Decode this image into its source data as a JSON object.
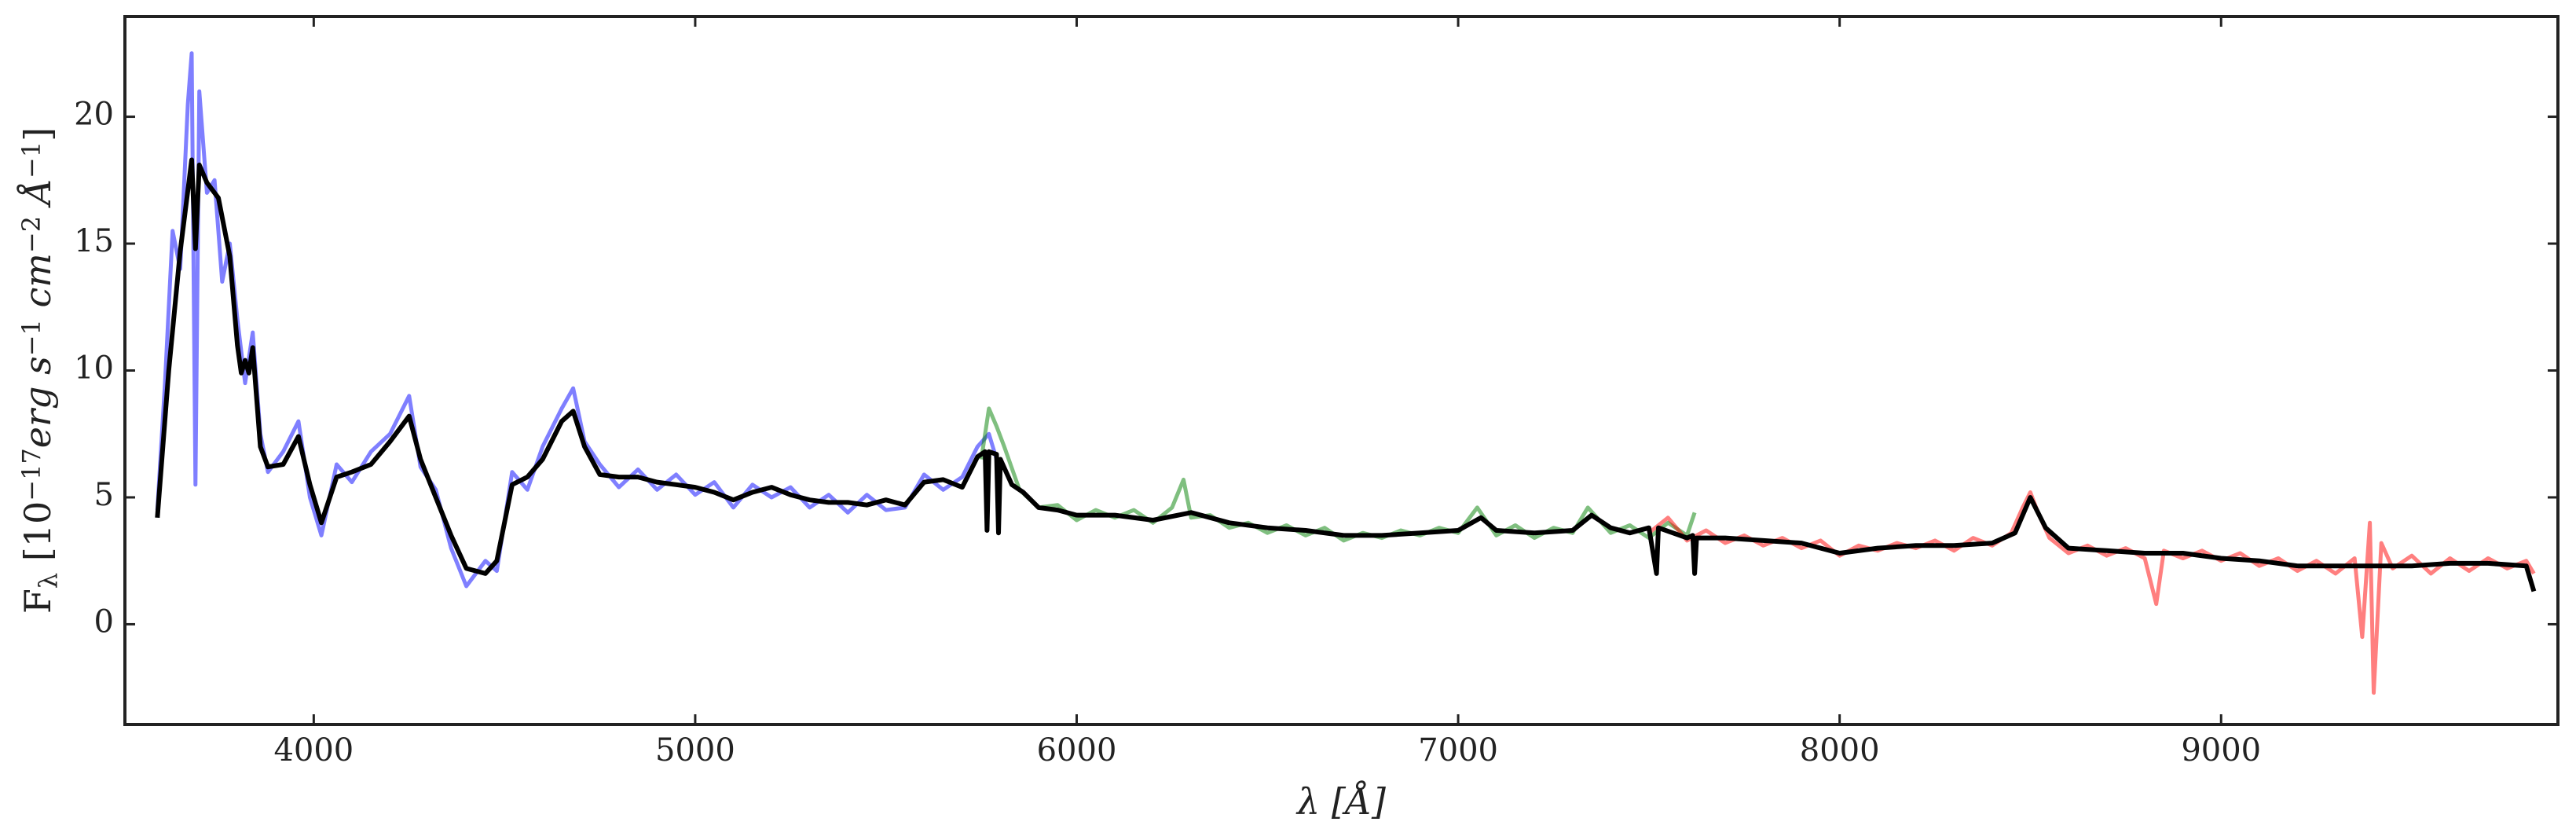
{
  "chart_data": {
    "type": "line",
    "xlabel": [
      {
        "text": "λ [Å]",
        "style": "italic"
      }
    ],
    "ylabel": [
      {
        "text": "F"
      },
      {
        "text": "λ",
        "script": "sub"
      },
      {
        "text": " [10"
      },
      {
        "text": "−17",
        "script": "super"
      },
      {
        "text": "erg s",
        "style": "italic"
      },
      {
        "text": "−1",
        "script": "super"
      },
      {
        "text": " cm",
        "style": "italic"
      },
      {
        "text": "−2",
        "script": "super"
      },
      {
        "text": " Å",
        "style": "italic"
      },
      {
        "text": "−1",
        "script": "super"
      },
      {
        "text": "]"
      }
    ],
    "xlim": [
      3505,
      9883
    ],
    "ylim": [
      -3.95,
      23.95
    ],
    "xticks": [
      4000,
      5000,
      6000,
      7000,
      8000,
      9000
    ],
    "yticks": [
      0,
      5,
      10,
      15,
      20
    ],
    "grid": false,
    "series": [
      {
        "color": "#0000ff",
        "alpha": 0.5,
        "width": 5,
        "x": [
          3590,
          3610,
          3630,
          3650,
          3670,
          3680,
          3690,
          3700,
          3720,
          3740,
          3760,
          3780,
          3800,
          3820,
          3840,
          3860,
          3880,
          3920,
          3960,
          3990,
          4020,
          4060,
          4100,
          4150,
          4200,
          4250,
          4280,
          4320,
          4360,
          4400,
          4450,
          4480,
          4520,
          4560,
          4600,
          4650,
          4680,
          4710,
          4750,
          4800,
          4850,
          4900,
          4950,
          5000,
          5050,
          5100,
          5150,
          5200,
          5250,
          5300,
          5350,
          5400,
          5450,
          5500,
          5550,
          5600,
          5650,
          5700,
          5740,
          5770,
          5800
        ],
        "values": [
          4.5,
          9.5,
          15.5,
          14,
          20.5,
          22.5,
          5.5,
          21,
          17,
          17.5,
          13.5,
          15,
          12,
          9.5,
          11.5,
          7.5,
          6,
          6.8,
          8,
          5,
          3.5,
          6.3,
          5.6,
          6.8,
          7.5,
          9,
          6.2,
          5.3,
          3,
          1.5,
          2.5,
          2.1,
          6,
          5.3,
          7,
          8.5,
          9.3,
          7.2,
          6.3,
          5.4,
          6.1,
          5.3,
          5.9,
          5.1,
          5.6,
          4.6,
          5.5,
          5.0,
          5.4,
          4.6,
          5.1,
          4.4,
          5.1,
          4.5,
          4.6,
          5.9,
          5.3,
          5.8,
          7.0,
          7.5,
          6.0
        ]
      },
      {
        "color": "#008000",
        "alpha": 0.5,
        "width": 5,
        "x": [
          5750,
          5770,
          5790,
          5810,
          5850,
          5900,
          5950,
          6000,
          6050,
          6100,
          6150,
          6200,
          6250,
          6280,
          6300,
          6350,
          6400,
          6450,
          6500,
          6550,
          6600,
          6650,
          6700,
          6750,
          6800,
          6850,
          6900,
          6950,
          7000,
          7050,
          7100,
          7150,
          7200,
          7250,
          7300,
          7340,
          7400,
          7450,
          7500,
          7550,
          7600,
          7620
        ],
        "values": [
          6.5,
          8.5,
          7.8,
          7.0,
          5.3,
          4.6,
          4.7,
          4.1,
          4.5,
          4.2,
          4.5,
          4.0,
          4.6,
          5.7,
          4.2,
          4.3,
          3.8,
          4.0,
          3.6,
          3.9,
          3.5,
          3.8,
          3.3,
          3.6,
          3.4,
          3.7,
          3.5,
          3.8,
          3.6,
          4.6,
          3.5,
          3.9,
          3.4,
          3.8,
          3.6,
          4.6,
          3.6,
          3.9,
          3.4,
          4.0,
          3.5,
          4.4
        ]
      },
      {
        "color": "#ff0000",
        "alpha": 0.5,
        "width": 5,
        "x": [
          7500,
          7550,
          7600,
          7650,
          7700,
          7750,
          7800,
          7850,
          7900,
          7950,
          8000,
          8050,
          8100,
          8150,
          8200,
          8250,
          8300,
          8350,
          8400,
          8450,
          8480,
          8500,
          8520,
          8550,
          8600,
          8650,
          8700,
          8750,
          8800,
          8830,
          8850,
          8900,
          8950,
          9000,
          9050,
          9100,
          9150,
          9200,
          9250,
          9300,
          9350,
          9370,
          9390,
          9400,
          9420,
          9450,
          9500,
          9550,
          9600,
          9650,
          9700,
          9750,
          9800,
          9820
        ],
        "values": [
          3.6,
          4.2,
          3.3,
          3.7,
          3.2,
          3.5,
          3.1,
          3.4,
          3.0,
          3.3,
          2.7,
          3.1,
          2.9,
          3.2,
          3.0,
          3.3,
          2.9,
          3.4,
          3.1,
          3.6,
          4.6,
          5.2,
          4.4,
          3.4,
          2.8,
          3.1,
          2.7,
          3.0,
          2.6,
          0.8,
          2.9,
          2.6,
          2.9,
          2.5,
          2.8,
          2.3,
          2.6,
          2.1,
          2.5,
          2.0,
          2.6,
          -0.5,
          4.0,
          -2.7,
          3.2,
          2.2,
          2.7,
          2.0,
          2.6,
          2.1,
          2.6,
          2.2,
          2.5,
          2.0
        ]
      },
      {
        "color": "#000000",
        "alpha": 1,
        "width": 6,
        "x": [
          3590,
          3620,
          3650,
          3680,
          3690,
          3700,
          3720,
          3750,
          3780,
          3800,
          3810,
          3820,
          3830,
          3840,
          3860,
          3880,
          3920,
          3960,
          3990,
          4020,
          4060,
          4100,
          4150,
          4200,
          4250,
          4280,
          4320,
          4360,
          4400,
          4450,
          4480,
          4520,
          4560,
          4600,
          4650,
          4680,
          4710,
          4750,
          4800,
          4850,
          4900,
          4950,
          5000,
          5050,
          5100,
          5150,
          5200,
          5250,
          5300,
          5350,
          5400,
          5450,
          5500,
          5550,
          5600,
          5650,
          5700,
          5740,
          5760,
          5765,
          5770,
          5790,
          5795,
          5800,
          5830,
          5860,
          5900,
          5950,
          6000,
          6100,
          6200,
          6300,
          6400,
          6500,
          6600,
          6700,
          6800,
          6900,
          7000,
          7060,
          7100,
          7200,
          7300,
          7350,
          7400,
          7450,
          7500,
          7520,
          7525,
          7600,
          7615,
          7620,
          7625,
          7700,
          7800,
          7900,
          8000,
          8100,
          8200,
          8300,
          8400,
          8460,
          8500,
          8540,
          8600,
          8700,
          8800,
          8900,
          9000,
          9100,
          9200,
          9300,
          9400,
          9500,
          9600,
          9700,
          9800,
          9820
        ],
        "values": [
          4.2,
          10,
          14.7,
          18.3,
          14.8,
          18.1,
          17.4,
          16.8,
          14.5,
          11,
          9.9,
          10.4,
          9.9,
          10.9,
          7,
          6.2,
          6.3,
          7.4,
          5.5,
          4,
          5.8,
          6.0,
          6.3,
          7.2,
          8.2,
          6.5,
          5,
          3.5,
          2.2,
          2,
          2.5,
          5.5,
          5.8,
          6.5,
          8.0,
          8.4,
          7,
          5.9,
          5.8,
          5.8,
          5.6,
          5.5,
          5.4,
          5.2,
          4.9,
          5.2,
          5.4,
          5.1,
          4.9,
          4.8,
          4.8,
          4.7,
          4.9,
          4.7,
          5.6,
          5.7,
          5.4,
          6.6,
          6.8,
          3.7,
          6.8,
          6.7,
          3.6,
          6.5,
          5.5,
          5.2,
          4.6,
          4.5,
          4.3,
          4.3,
          4.1,
          4.4,
          4.0,
          3.8,
          3.7,
          3.5,
          3.5,
          3.6,
          3.7,
          4.2,
          3.7,
          3.6,
          3.7,
          4.3,
          3.8,
          3.6,
          3.8,
          2.0,
          3.8,
          3.4,
          3.5,
          2.0,
          3.4,
          3.4,
          3.3,
          3.2,
          2.8,
          3.0,
          3.1,
          3.1,
          3.2,
          3.6,
          5.0,
          3.8,
          3.0,
          2.9,
          2.8,
          2.8,
          2.6,
          2.5,
          2.3,
          2.3,
          2.3,
          2.3,
          2.4,
          2.4,
          2.3,
          1.3
        ]
      }
    ]
  }
}
